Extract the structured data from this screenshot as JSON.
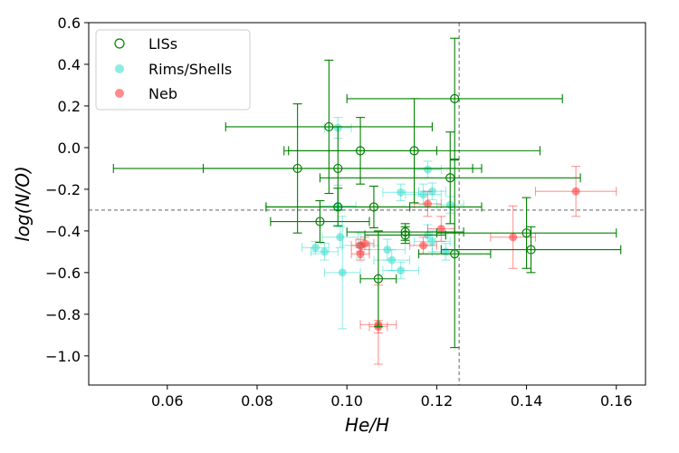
{
  "chart_data": {
    "type": "scatter",
    "xlabel": "He/H",
    "ylabel": "log(N/O)",
    "xlim": [
      0.0425,
      0.1665
    ],
    "ylim": [
      -1.14,
      0.6
    ],
    "xticks": [
      "0.06",
      "0.08",
      "0.10",
      "0.12",
      "0.14",
      "0.16"
    ],
    "xtick_values": [
      0.06,
      0.08,
      0.1,
      0.12,
      0.14,
      0.16
    ],
    "yticks": [
      "0.6",
      "0.4",
      "0.2",
      "0.0",
      "−0.2",
      "−0.4",
      "−0.6",
      "−0.8",
      "−1.0"
    ],
    "ytick_values": [
      0.6,
      0.4,
      0.2,
      0.0,
      -0.2,
      -0.4,
      -0.6,
      -0.8,
      -1.0
    ],
    "reference_lines": {
      "x": 0.125,
      "y": -0.3
    },
    "legend": {
      "position": "top-left",
      "entries": [
        "LISs",
        "Rims/Shells",
        "Neb"
      ]
    },
    "series": [
      {
        "name": "LISs",
        "color": "#008000",
        "marker": "open-circle",
        "points": [
          {
            "x": 0.096,
            "y": 0.1,
            "xerr": 0.023,
            "yerr": 0.32
          },
          {
            "x": 0.103,
            "y": -0.015,
            "xerr": 0.017,
            "yerr": 0.16
          },
          {
            "x": 0.089,
            "y": -0.1,
            "xerr": 0.041,
            "yerr": 0.31
          },
          {
            "x": 0.098,
            "y": -0.1,
            "xerr": 0.03,
            "yerr": 0.2
          },
          {
            "x": 0.124,
            "y": 0.235,
            "xerr": 0.024,
            "yerr": 0.29
          },
          {
            "x": 0.115,
            "y": -0.015,
            "xerr": 0.028,
            "yerr": 0.25
          },
          {
            "x": 0.123,
            "y": -0.145,
            "xerr": 0.029,
            "yerr": 0.22
          },
          {
            "x": 0.094,
            "y": -0.355,
            "xerr": 0.011,
            "yerr": 0.1
          },
          {
            "x": 0.098,
            "y": -0.285,
            "xerr": 0.016,
            "yerr": 0.09
          },
          {
            "x": 0.106,
            "y": -0.285,
            "xerr": 0.024,
            "yerr": 0.1
          },
          {
            "x": 0.113,
            "y": -0.405,
            "xerr": 0.013,
            "yerr": 0.04
          },
          {
            "x": 0.113,
            "y": -0.42,
            "xerr": 0.009,
            "yerr": 0.04
          },
          {
            "x": 0.124,
            "y": -0.51,
            "xerr": 0.008,
            "yerr": 0.45
          },
          {
            "x": 0.14,
            "y": -0.41,
            "xerr": 0.02,
            "yerr": 0.17
          },
          {
            "x": 0.141,
            "y": -0.49,
            "xerr": 0.02,
            "yerr": 0.11
          },
          {
            "x": 0.107,
            "y": -0.63,
            "xerr": 0.004,
            "yerr": 0.23
          }
        ]
      },
      {
        "name": "Rims/Shells",
        "color": "#40E0D0",
        "marker": "filled-circle",
        "points": [
          {
            "x": 0.098,
            "y": 0.095,
            "xerr": 0.003,
            "yerr": 0.05
          },
          {
            "x": 0.098,
            "y": -0.28,
            "xerr": 0.004,
            "yerr": 0.1
          },
          {
            "x": 0.0985,
            "y": -0.43,
            "xerr": 0.004,
            "yerr": 0.05
          },
          {
            "x": 0.093,
            "y": -0.48,
            "xerr": 0.003,
            "yerr": 0.03
          },
          {
            "x": 0.095,
            "y": -0.5,
            "xerr": 0.003,
            "yerr": 0.04
          },
          {
            "x": 0.099,
            "y": -0.6,
            "xerr": 0.004,
            "yerr": 0.27
          },
          {
            "x": 0.103,
            "y": -0.47,
            "xerr": 0.004,
            "yerr": 0.06
          },
          {
            "x": 0.109,
            "y": -0.49,
            "xerr": 0.004,
            "yerr": 0.05
          },
          {
            "x": 0.11,
            "y": -0.54,
            "xerr": 0.004,
            "yerr": 0.05
          },
          {
            "x": 0.112,
            "y": -0.215,
            "xerr": 0.004,
            "yerr": 0.04
          },
          {
            "x": 0.112,
            "y": -0.59,
            "xerr": 0.004,
            "yerr": 0.04
          },
          {
            "x": 0.117,
            "y": -0.225,
            "xerr": 0.004,
            "yerr": 0.05
          },
          {
            "x": 0.118,
            "y": -0.105,
            "xerr": 0.003,
            "yerr": 0.04
          },
          {
            "x": 0.119,
            "y": -0.21,
            "xerr": 0.003,
            "yerr": 0.04
          },
          {
            "x": 0.118,
            "y": -0.42,
            "xerr": 0.004,
            "yerr": 0.05
          },
          {
            "x": 0.119,
            "y": -0.45,
            "xerr": 0.004,
            "yerr": 0.05
          },
          {
            "x": 0.123,
            "y": -0.275,
            "xerr": 0.003,
            "yerr": 0.04
          },
          {
            "x": 0.122,
            "y": -0.5,
            "xerr": 0.003,
            "yerr": 0.04
          }
        ]
      },
      {
        "name": "Neb",
        "color": "#FF4040",
        "marker": "filled-circle",
        "points": [
          {
            "x": 0.151,
            "y": -0.21,
            "xerr": 0.009,
            "yerr": 0.12
          },
          {
            "x": 0.137,
            "y": -0.43,
            "xerr": 0.005,
            "yerr": 0.15
          },
          {
            "x": 0.118,
            "y": -0.27,
            "xerr": 0.003,
            "yerr": 0.06
          },
          {
            "x": 0.121,
            "y": -0.39,
            "xerr": 0.003,
            "yerr": 0.06
          },
          {
            "x": 0.117,
            "y": -0.47,
            "xerr": 0.003,
            "yerr": 0.04
          },
          {
            "x": 0.103,
            "y": -0.47,
            "xerr": 0.002,
            "yerr": 0.03
          },
          {
            "x": 0.104,
            "y": -0.46,
            "xerr": 0.002,
            "yerr": 0.03
          },
          {
            "x": 0.103,
            "y": -0.51,
            "xerr": 0.002,
            "yerr": 0.03
          },
          {
            "x": 0.107,
            "y": -0.85,
            "xerr": 0.004,
            "yerr": 0.19
          },
          {
            "x": 0.107,
            "y": -0.86,
            "xerr": 0.002,
            "yerr": 0.03
          }
        ]
      }
    ]
  }
}
